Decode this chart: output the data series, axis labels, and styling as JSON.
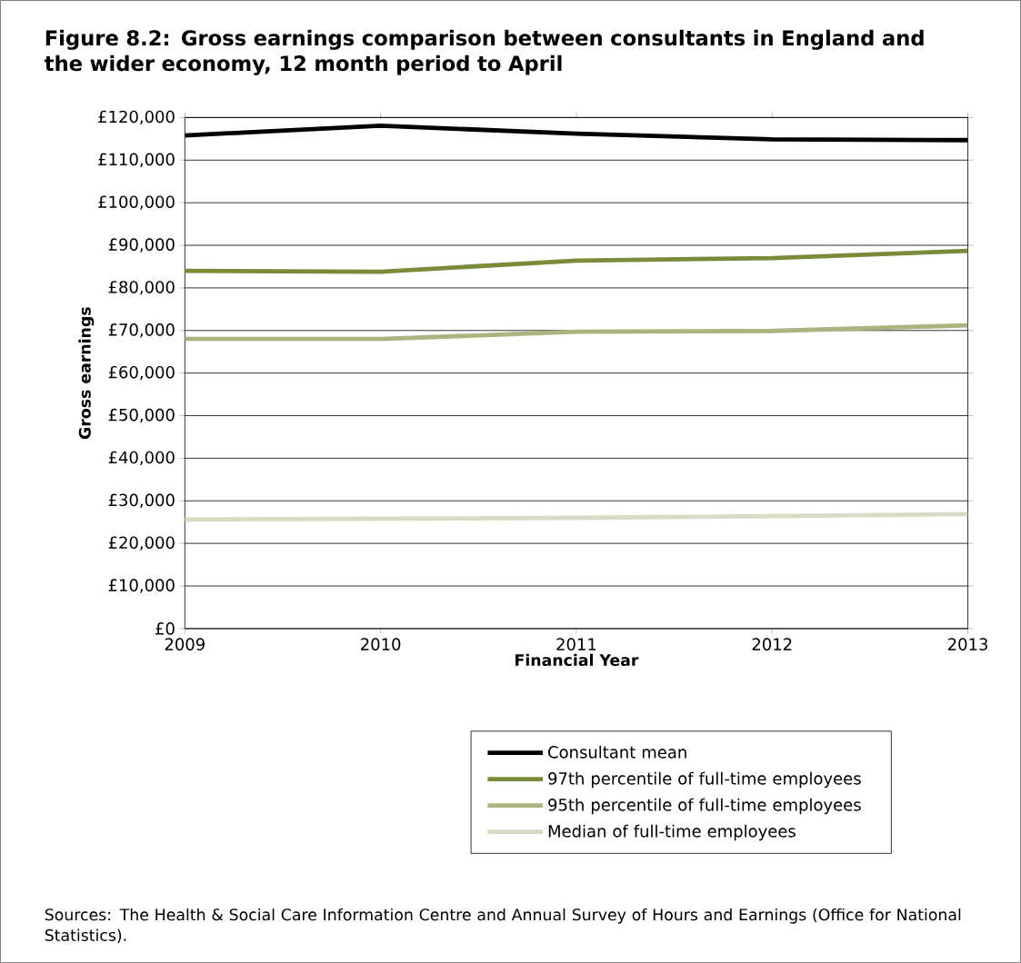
{
  "chart_data": {
    "type": "line",
    "title": "Figure 8.2: Gross earnings comparison between consultants in England and the wider economy, 12 month period to April",
    "xlabel": "Financial Year",
    "ylabel": "Gross earnings",
    "x": [
      2009,
      2010,
      2011,
      2012,
      2013
    ],
    "series": [
      {
        "name": "Consultant mean",
        "color": "#000000",
        "values": [
          115800,
          118100,
          116200,
          114900,
          114700
        ]
      },
      {
        "name": "97th percentile of full-time employees",
        "color": "#7a8c3a",
        "values": [
          84000,
          83800,
          86400,
          87000,
          88700
        ]
      },
      {
        "name": "95th percentile of full-time employees",
        "color": "#a9b47e",
        "values": [
          68000,
          68000,
          69700,
          69900,
          71200
        ]
      },
      {
        "name": "Median of full-time employees",
        "color": "#d8dcc4",
        "values": [
          25600,
          25800,
          26000,
          26400,
          26900
        ]
      }
    ],
    "xlim": [
      2009,
      2013
    ],
    "xticks": [
      2009,
      2010,
      2011,
      2012,
      2013
    ],
    "ylim": [
      0,
      120000
    ],
    "yticks": [
      {
        "value": 0,
        "label": "£0"
      },
      {
        "value": 10000,
        "label": "£10,000"
      },
      {
        "value": 20000,
        "label": "£20,000"
      },
      {
        "value": 30000,
        "label": "£30,000"
      },
      {
        "value": 40000,
        "label": "£40,000"
      },
      {
        "value": 50000,
        "label": "£50,000"
      },
      {
        "value": 60000,
        "label": "£60,000"
      },
      {
        "value": 70000,
        "label": "£70,000"
      },
      {
        "value": 80000,
        "label": "£80,000"
      },
      {
        "value": 90000,
        "label": "£90,000"
      },
      {
        "value": 100000,
        "label": "£100,000"
      },
      {
        "value": 110000,
        "label": "£110,000"
      },
      {
        "value": 120000,
        "label": "£120,000"
      }
    ],
    "grid": "y",
    "legend": "bottom",
    "marker": "none",
    "line_style": "solid",
    "annotations": [
      "Sources: The Health & Social Care Information Centre and Annual Survey of Hours and Earnings (Office for National Statistics)."
    ]
  }
}
